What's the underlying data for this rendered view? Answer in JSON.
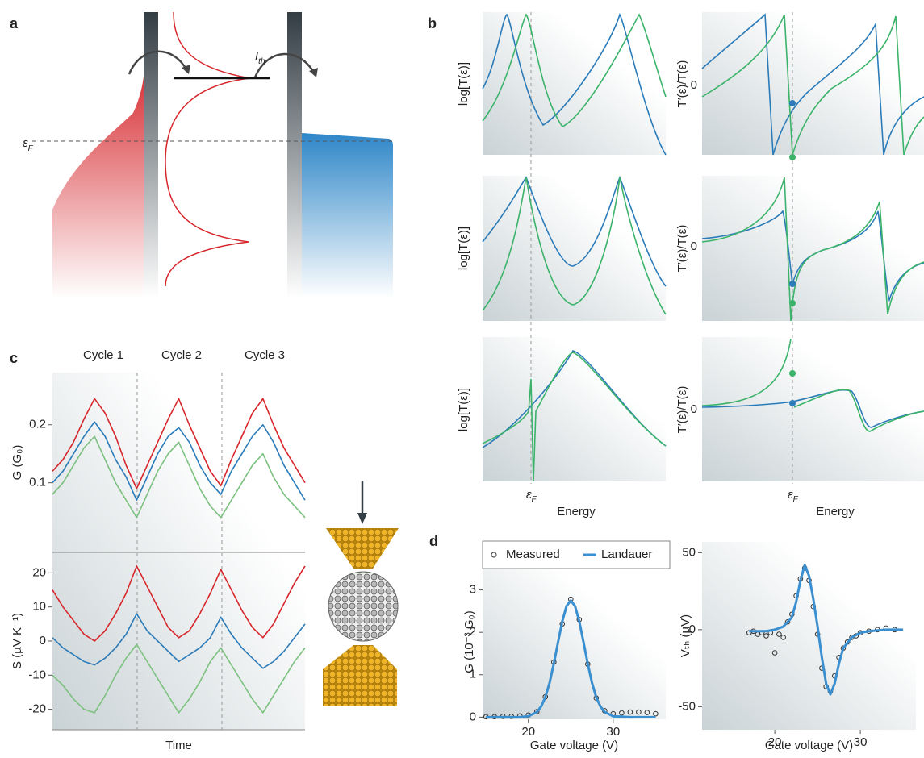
{
  "figure": {
    "panel_labels": [
      "a",
      "b",
      "c",
      "d"
    ],
    "a": {
      "current": {
        "symbol": "I",
        "subscript": "th"
      },
      "fermi": {
        "symbol": "ε",
        "subscript": "F"
      }
    },
    "b": {
      "y_labels_left": [
        "log[T(ε)]",
        "log[T(ε)]",
        "log[T(ε)]"
      ],
      "y_labels_right": [
        "T′(ε)/T(ε)",
        "T′(ε)/T(ε)",
        "T′(ε)/T(ε)"
      ],
      "zero_ticks": [
        "0",
        "0",
        "0"
      ],
      "fermi": [
        {
          "symbol": "ε",
          "subscript": "F"
        },
        {
          "symbol": "ε",
          "subscript": "F"
        }
      ],
      "x_labels": [
        "Energy",
        "Energy"
      ]
    },
    "c": {
      "cycles": [
        "Cycle 1",
        "Cycle 2",
        "Cycle 3"
      ]
    }
  },
  "chart_data": [
    {
      "type": "line",
      "y_label": "G (G₀)",
      "ylim": [
        -0.02,
        0.29
      ],
      "yticks": [
        0.1,
        0.2
      ],
      "series": [
        {
          "color": "#d7262b",
          "values": [
            0.12,
            0.14,
            0.17,
            0.21,
            0.245,
            0.22,
            0.18,
            0.13,
            0.09,
            0.13,
            0.17,
            0.21,
            0.245,
            0.2,
            0.16,
            0.12,
            0.095,
            0.14,
            0.18,
            0.22,
            0.245,
            0.2,
            0.16,
            0.13,
            0.1
          ]
        },
        {
          "color": "#2b7bb9",
          "values": [
            0.1,
            0.12,
            0.15,
            0.18,
            0.205,
            0.18,
            0.14,
            0.11,
            0.07,
            0.11,
            0.15,
            0.18,
            0.195,
            0.17,
            0.13,
            0.1,
            0.08,
            0.12,
            0.15,
            0.18,
            0.2,
            0.17,
            0.13,
            0.1,
            0.07
          ]
        },
        {
          "color": "#7cc17f",
          "values": [
            0.08,
            0.1,
            0.13,
            0.16,
            0.18,
            0.14,
            0.1,
            0.07,
            0.04,
            0.08,
            0.12,
            0.15,
            0.17,
            0.13,
            0.09,
            0.06,
            0.04,
            0.07,
            0.1,
            0.13,
            0.15,
            0.11,
            0.08,
            0.06,
            0.04
          ]
        }
      ]
    },
    {
      "type": "line",
      "y_label": "S (µV K⁻¹)",
      "x_label": "Time",
      "ylim": [
        -26,
        26
      ],
      "yticks": [
        -20,
        -10,
        0,
        10,
        20
      ],
      "series": [
        {
          "color": "#d7262b",
          "values": [
            15,
            10,
            6,
            2,
            0,
            3,
            8,
            14,
            22,
            16,
            10,
            4,
            1,
            3,
            8,
            14,
            21,
            15,
            9,
            4,
            1,
            5,
            11,
            17,
            22
          ]
        },
        {
          "color": "#2b7bb9",
          "values": [
            1,
            -2,
            -4,
            -6,
            -7,
            -5,
            -2,
            2,
            8,
            3,
            0,
            -3,
            -6,
            -4,
            -2,
            1,
            7,
            2,
            -2,
            -5,
            -8,
            -6,
            -3,
            1,
            5
          ]
        },
        {
          "color": "#7cc17f",
          "values": [
            -10,
            -13,
            -17,
            -20,
            -21,
            -16,
            -10,
            -5,
            -1,
            -6,
            -11,
            -16,
            -21,
            -17,
            -12,
            -6,
            -2,
            -7,
            -12,
            -17,
            -21,
            -16,
            -11,
            -6,
            -2
          ]
        }
      ]
    },
    {
      "type": "line",
      "y_label": "G (10⁻³ G₀)",
      "x_label": "Gate voltage (V)",
      "xlim": [
        14.6,
        36.2
      ],
      "xticks": [
        20,
        30
      ],
      "ylim": [
        -0.05,
        3.6
      ],
      "yticks": [
        0,
        1,
        2,
        3
      ],
      "series": [
        {
          "name": "Measured",
          "color": "#333333",
          "marker": "open-circle",
          "x": [
            15,
            16,
            17,
            18,
            19,
            20,
            21,
            22,
            23,
            24,
            25,
            26,
            27,
            28,
            29,
            30,
            31,
            32,
            33,
            34,
            35
          ],
          "values": [
            0.01,
            0.01,
            0.02,
            0.02,
            0.03,
            0.05,
            0.13,
            0.48,
            1.3,
            2.2,
            2.78,
            2.3,
            1.25,
            0.45,
            0.15,
            0.08,
            0.1,
            0.12,
            0.12,
            0.11,
            0.08
          ]
        },
        {
          "name": "Landauer",
          "color": "#3a8fd0",
          "marker": "none",
          "x": [
            15,
            17,
            19,
            20,
            21,
            21.5,
            22,
            22.5,
            23,
            23.5,
            24,
            24.5,
            25,
            25.5,
            26,
            26.5,
            27,
            27.5,
            28,
            28.5,
            29,
            30,
            32,
            35
          ],
          "values": [
            0,
            0,
            0,
            0.02,
            0.12,
            0.25,
            0.47,
            0.81,
            1.26,
            1.77,
            2.26,
            2.62,
            2.75,
            2.62,
            2.26,
            1.77,
            1.26,
            0.81,
            0.47,
            0.25,
            0.12,
            0.02,
            0,
            0
          ]
        }
      ]
    },
    {
      "type": "line",
      "y_label": "Vₜₕ (µV)",
      "x_label": "Gate voltage (V)",
      "xlim": [
        11.5,
        36.5
      ],
      "xticks": [
        20,
        30
      ],
      "ylim": [
        -65,
        57
      ],
      "yticks": [
        -50,
        0,
        50
      ],
      "series": [
        {
          "color": "#333333",
          "marker": "open-circle",
          "x": [
            17,
            17.5,
            18,
            18.5,
            19,
            19.5,
            20,
            20.5,
            21,
            21.5,
            22,
            22.5,
            23,
            23.5,
            24,
            24.5,
            25,
            25.5,
            26,
            26.5,
            27,
            27.5,
            28,
            28.5,
            29,
            29.5,
            30,
            31,
            32,
            33,
            34
          ],
          "values": [
            -2,
            -1,
            -3,
            -2,
            -4,
            -2,
            -15,
            -3,
            -5,
            5,
            10,
            22,
            33,
            40,
            32,
            15,
            -3,
            -25,
            -37,
            -40,
            -30,
            -18,
            -12,
            -8,
            -5,
            -4,
            -2,
            -1,
            0,
            1,
            0
          ]
        },
        {
          "color": "#3a8fd0",
          "marker": "none",
          "x": [
            17,
            19,
            20,
            21,
            22,
            22.5,
            23,
            23.5,
            24,
            24.5,
            25,
            25.5,
            26,
            26.5,
            27,
            27.5,
            28,
            29,
            30,
            31,
            33,
            35
          ],
          "values": [
            -1,
            -1,
            0,
            2,
            8,
            18,
            32,
            42,
            35,
            20,
            2,
            -18,
            -35,
            -42,
            -35,
            -22,
            -12,
            -5,
            -2,
            -1,
            0,
            0
          ]
        }
      ]
    }
  ]
}
